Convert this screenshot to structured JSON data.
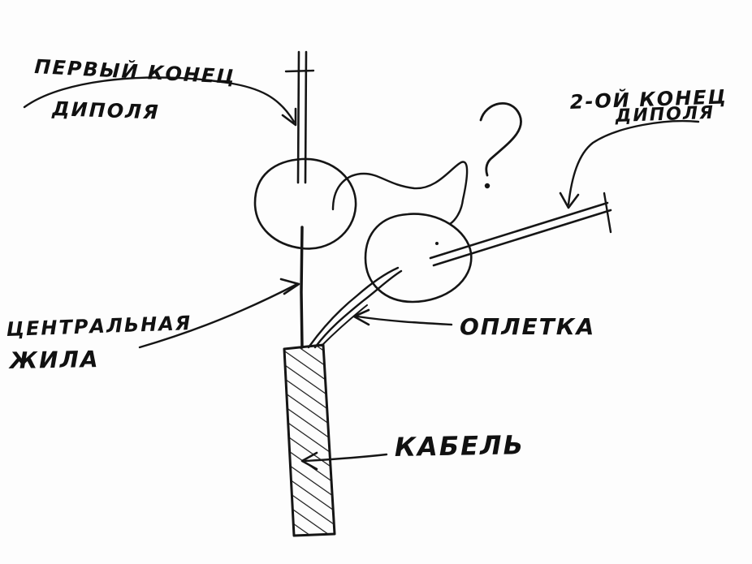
{
  "labels": {
    "first_end_line1": "ПЕРВЫЙ КОНЕЦ",
    "first_end_line2": "ДИПОЛЯ",
    "second_end_line1": "2-ОЙ КОНЕЦ",
    "second_end_line2": "ДИПОЛЯ",
    "center_core_line1": "ЦЕНТРАЛЬНАЯ",
    "center_core_line2": "ЖИЛА",
    "braid": "ОПЛЕТКА",
    "cable": "КАБЕЛЬ",
    "question": "?"
  },
  "colors": {
    "ink": "#151515",
    "paper": "#fdfdfd"
  }
}
